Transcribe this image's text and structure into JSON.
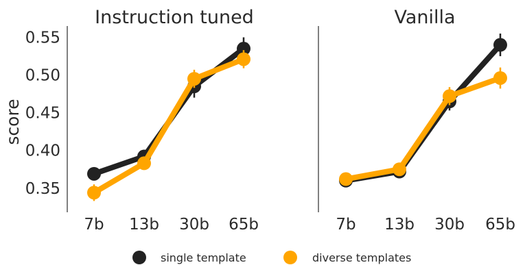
{
  "chart_data": {
    "type": "line",
    "categories": [
      "7b",
      "13b",
      "30b",
      "65b"
    ],
    "ylabel": "score",
    "ylim": [
      0.318,
      0.565
    ],
    "yticks": [
      "0.35",
      "0.40",
      "0.45",
      "0.50",
      "0.55"
    ],
    "ytick_values": [
      0.35,
      0.4,
      0.45,
      0.5,
      0.55
    ],
    "colors": {
      "single": "#222222",
      "diverse": "#ffa500"
    },
    "legend": {
      "placement": "bottom",
      "entries": [
        {
          "label": "single template",
          "color": "#222222"
        },
        {
          "label": "diverse templates",
          "color": "#ffa500"
        }
      ]
    },
    "panels": [
      {
        "title": "Instruction tuned",
        "series": [
          {
            "key": "single",
            "values": [
              0.369,
              0.392,
              0.485,
              0.535
            ],
            "err": [
              0.008,
              0.007,
              0.015,
              0.015
            ]
          },
          {
            "key": "diverse",
            "values": [
              0.344,
              0.383,
              0.495,
              0.521
            ],
            "err": [
              0.011,
              0.007,
              0.012,
              0.012
            ]
          }
        ]
      },
      {
        "title": "Vanilla",
        "series": [
          {
            "key": "single",
            "values": [
              0.36,
              0.372,
              0.465,
              0.54
            ],
            "err": [
              0.008,
              0.007,
              0.012,
              0.015
            ]
          },
          {
            "key": "diverse",
            "values": [
              0.362,
              0.375,
              0.472,
              0.496
            ],
            "err": [
              0.008,
              0.006,
              0.012,
              0.014
            ]
          }
        ]
      }
    ]
  }
}
